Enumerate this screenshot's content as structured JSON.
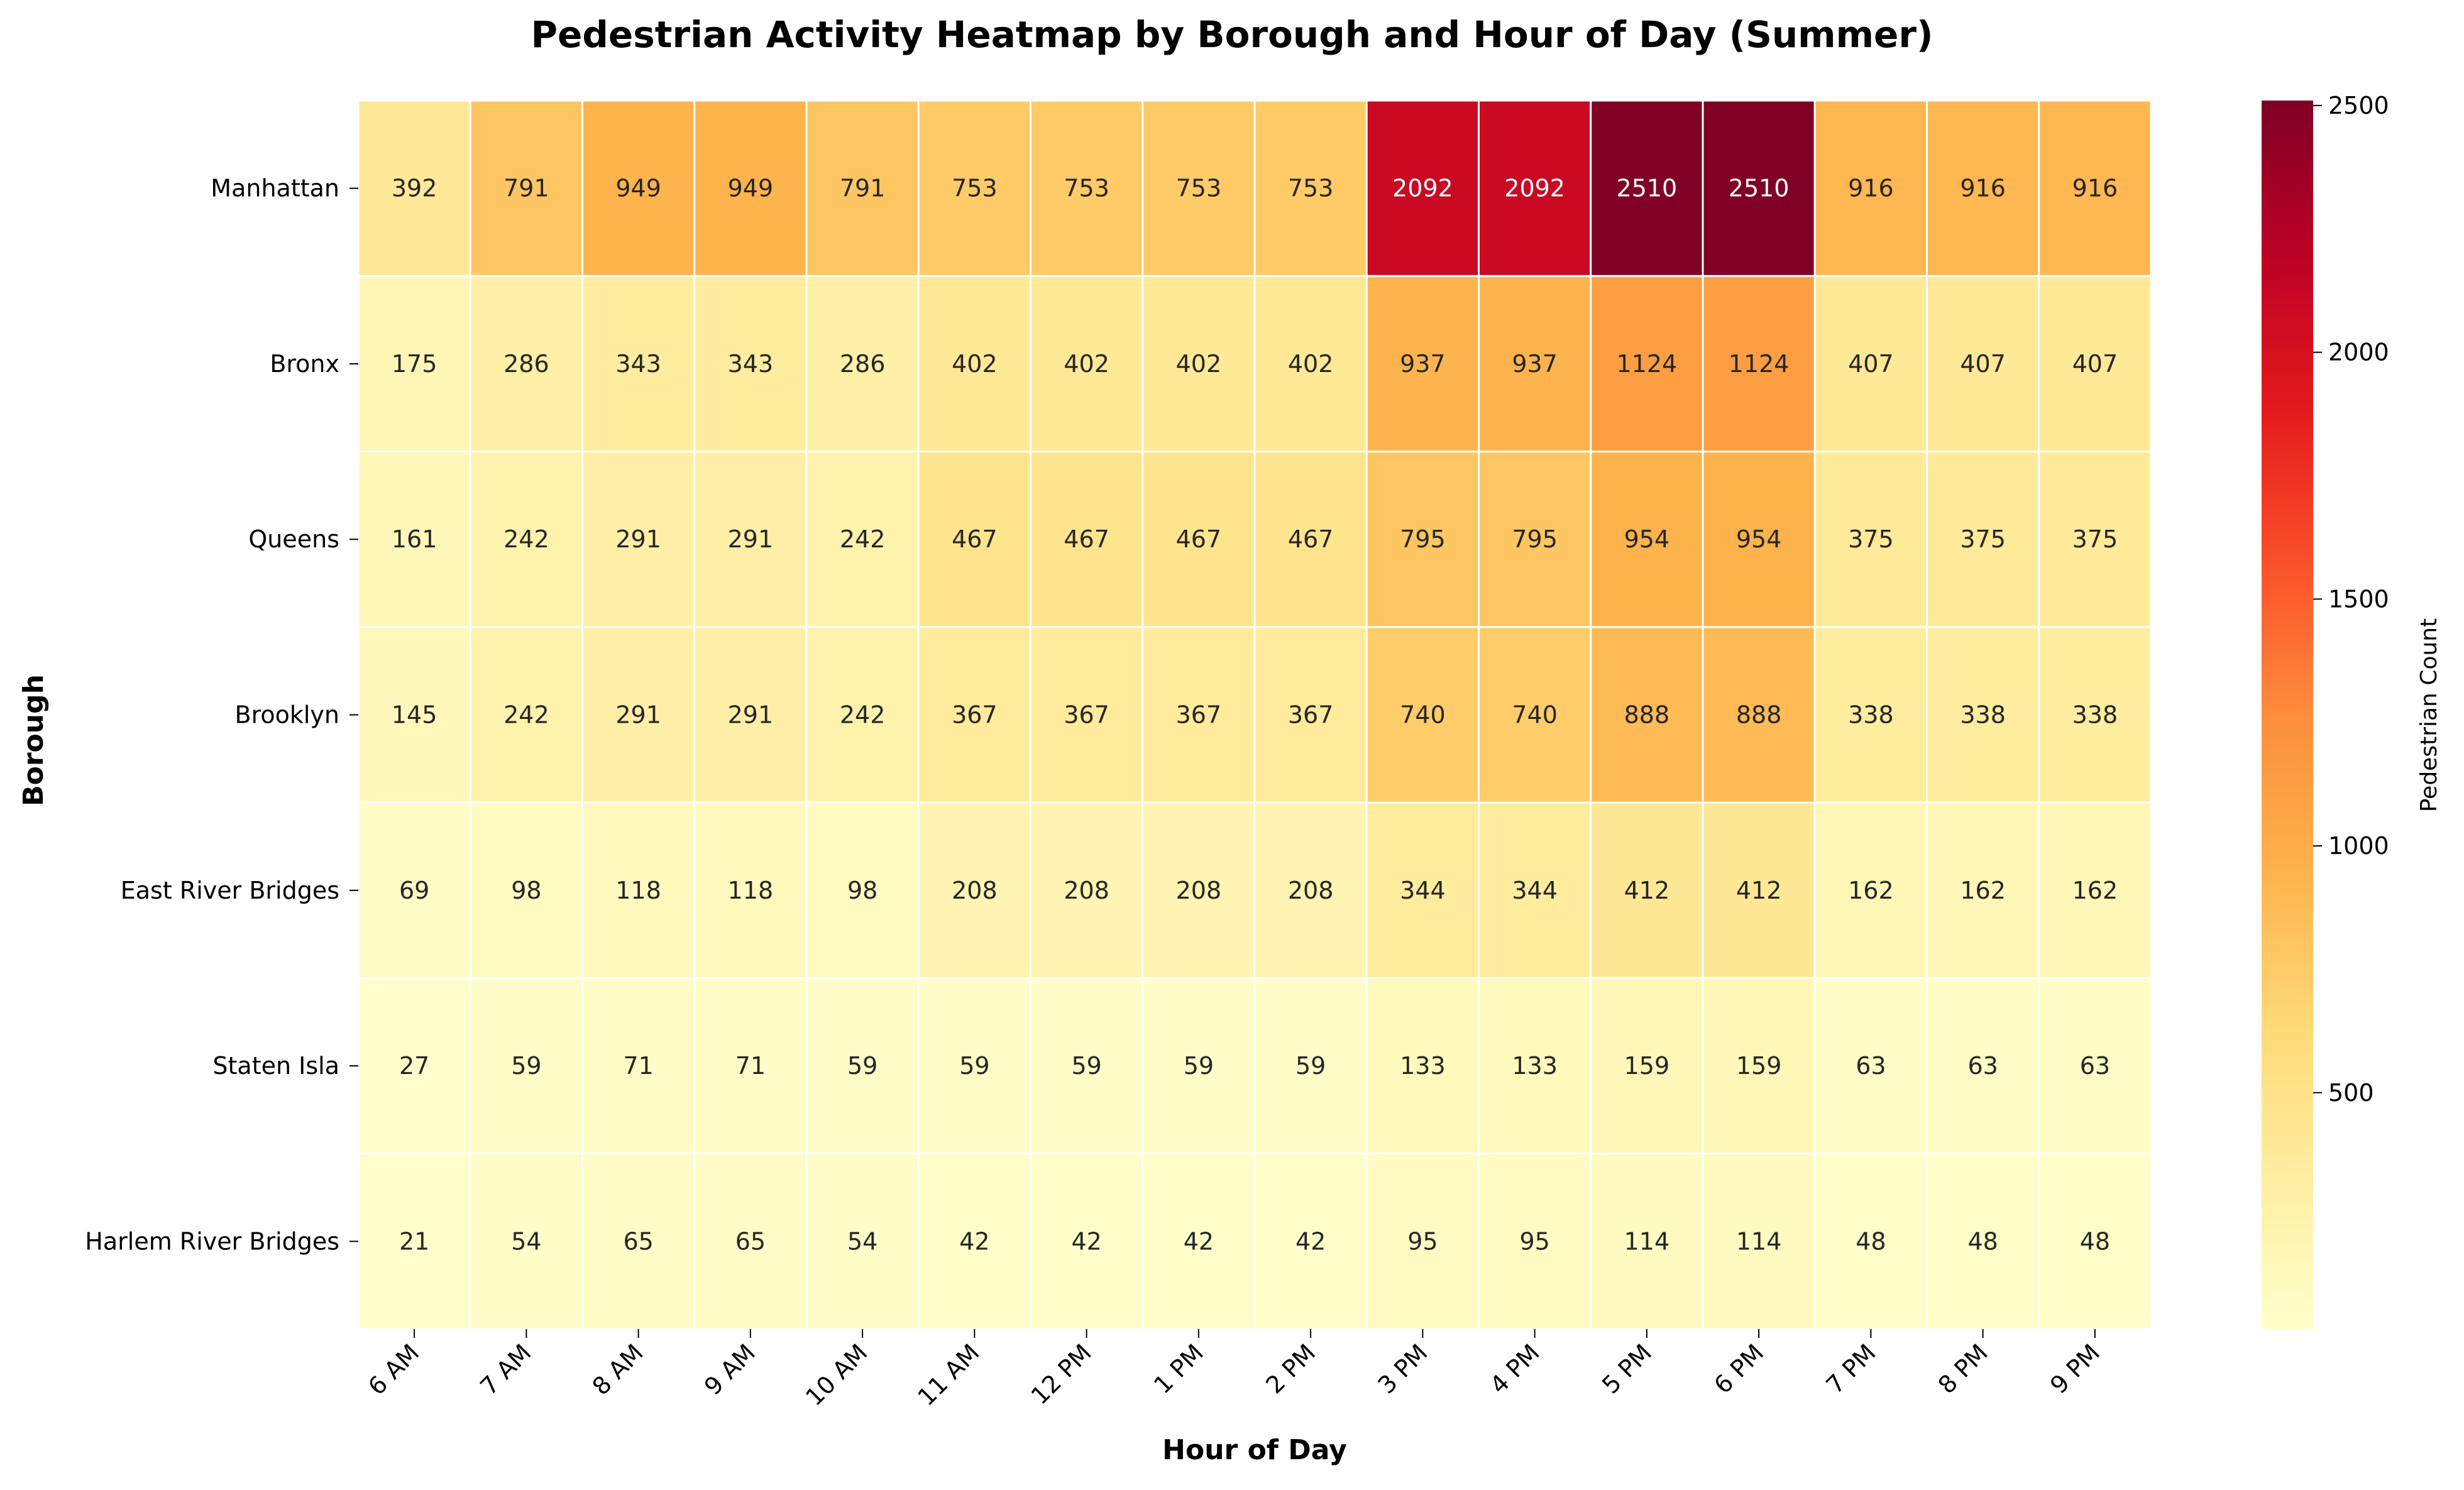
{
  "chart_data": {
    "type": "heatmap",
    "title": "Pedestrian Activity Heatmap by Borough and Hour of Day (Summer)",
    "xlabel": "Hour of Day",
    "ylabel": "Borough",
    "x_categories": [
      "6 AM",
      "7 AM",
      "8 AM",
      "9 AM",
      "10 AM",
      "11 AM",
      "12 PM",
      "1 PM",
      "2 PM",
      "3 PM",
      "4 PM",
      "5 PM",
      "6 PM",
      "7 PM",
      "8 PM",
      "9 PM"
    ],
    "y_categories": [
      "Manhattan",
      "Bronx",
      "Queens",
      "Brooklyn",
      "East River Bridges",
      "Staten Isla",
      "Harlem River Bridges"
    ],
    "values": [
      [
        392,
        791,
        949,
        949,
        791,
        753,
        753,
        753,
        753,
        2092,
        2092,
        2510,
        2510,
        916,
        916,
        916
      ],
      [
        175,
        286,
        343,
        343,
        286,
        402,
        402,
        402,
        402,
        937,
        937,
        1124,
        1124,
        407,
        407,
        407
      ],
      [
        161,
        242,
        291,
        291,
        242,
        467,
        467,
        467,
        467,
        795,
        795,
        954,
        954,
        375,
        375,
        375
      ],
      [
        145,
        242,
        291,
        291,
        242,
        367,
        367,
        367,
        367,
        740,
        740,
        888,
        888,
        338,
        338,
        338
      ],
      [
        69,
        98,
        118,
        118,
        98,
        208,
        208,
        208,
        208,
        344,
        344,
        412,
        412,
        162,
        162,
        162
      ],
      [
        27,
        59,
        71,
        71,
        59,
        59,
        59,
        59,
        59,
        133,
        133,
        159,
        159,
        63,
        63,
        63
      ],
      [
        21,
        54,
        65,
        65,
        54,
        42,
        42,
        42,
        42,
        95,
        95,
        114,
        114,
        48,
        48,
        48
      ]
    ],
    "colormap": "YlOrRd",
    "vmin": 21,
    "vmax": 2510,
    "colorbar": {
      "label": "Pedestrian Count",
      "ticks": [
        500,
        1000,
        1500,
        2000,
        2500
      ]
    },
    "annotations": true,
    "grid": false
  }
}
